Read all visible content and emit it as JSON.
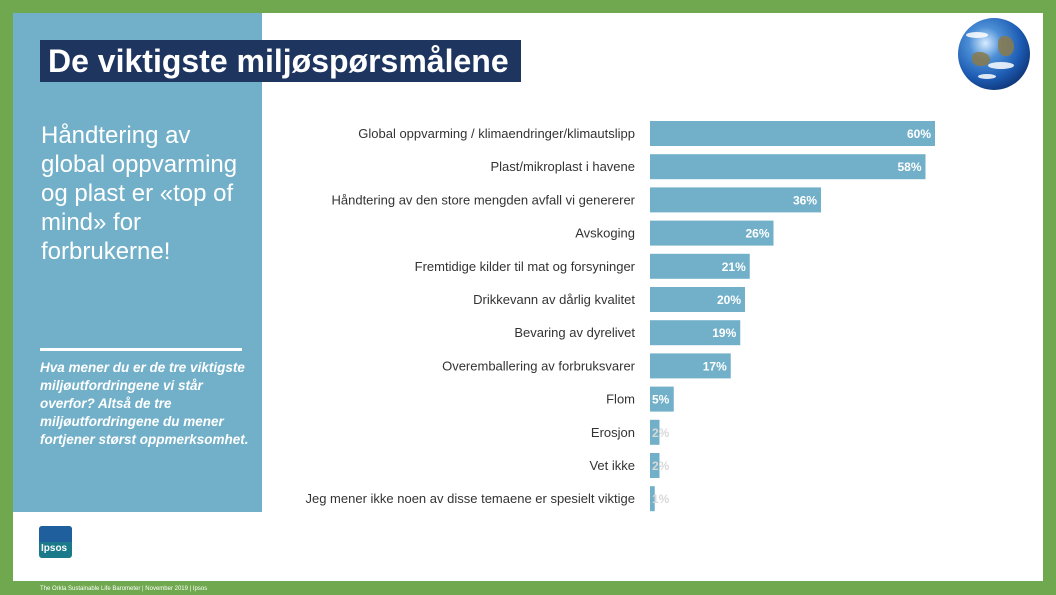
{
  "slide": {
    "title": "De viktigste miljøspørsmålene",
    "headline": "Håndtering av global oppvarming og plast er «top of mind» for forbrukerne!",
    "question": "Hva mener du er de tre viktigste miljøutfordringene vi står overfor? Altså de tre miljøutfordringene du mener fortjener størst oppmerksomhet.",
    "logo_text": "Ipsos",
    "footer": "The Orkla Sustainable Life Barometer | November 2019 | Ipsos"
  },
  "colors": {
    "sidebar": "#72b0c9",
    "title_bg": "#1e3560",
    "bar": "#72b0c9",
    "frame": "#70a84f"
  },
  "chart_data": {
    "type": "bar",
    "orientation": "horizontal",
    "categories": [
      "Global oppvarming / klimaendringer/klimautslipp",
      "Plast/mikroplast i havene",
      "Håndtering av den store mengden avfall vi genererer",
      "Avskoging",
      "Fremtidige kilder til mat og forsyninger",
      "Drikkevann av dårlig kvalitet",
      "Bevaring av dyrelivet",
      "Overemballering av forbruksvarer",
      "Flom",
      "Erosjon",
      "Vet ikke",
      "Jeg mener ikke noen av disse temaene er spesielt viktige"
    ],
    "values": [
      60,
      58,
      36,
      26,
      21,
      20,
      19,
      17,
      5,
      2,
      2,
      1
    ],
    "value_labels": [
      "60%",
      "58%",
      "36%",
      "26%",
      "21%",
      "20%",
      "19%",
      "17%",
      "5%",
      "2%",
      "2%",
      "1%"
    ],
    "xlim": [
      0,
      60
    ],
    "grid": false,
    "legend": "none"
  }
}
